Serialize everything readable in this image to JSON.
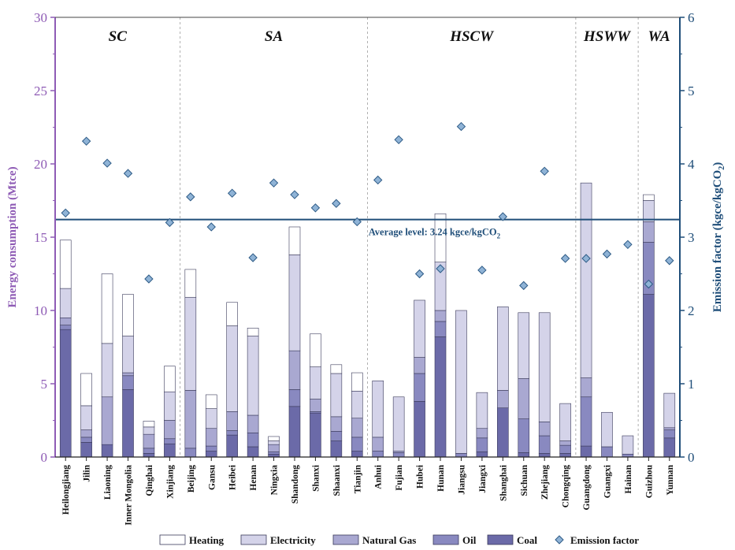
{
  "chart_data": {
    "type": "bar",
    "stacked": true,
    "categories": [
      "Heilongjiang",
      "Jilin",
      "Liaoning",
      "Inner Mongolia",
      "Qinghai",
      "Xinjiang",
      "Beijing",
      "Gansu",
      "Heibei",
      "Henan",
      "Ningxia",
      "Shandong",
      "Shanxi",
      "Shaanxi",
      "Tianjin",
      "Anhui",
      "Fujian",
      "Hubei",
      "Hunan",
      "Jiangsu",
      "Jiangxi",
      "Shanghai",
      "Sichuan",
      "Zhejiang",
      "Chongqing",
      "Guangdong",
      "Guangxi",
      "Hainan",
      "Guizhou",
      "Yunnan"
    ],
    "regions": [
      {
        "label": "SC",
        "start": 0,
        "end": 5
      },
      {
        "label": "SA",
        "start": 6,
        "end": 14
      },
      {
        "label": "HSCW",
        "start": 15,
        "end": 24
      },
      {
        "label": "HSWW",
        "start": 25,
        "end": 27
      },
      {
        "label": "WA",
        "start": 28,
        "end": 29
      }
    ],
    "series": [
      {
        "name": "Coal",
        "color": "#6b6aa8",
        "values": [
          8.7,
          1.0,
          0.85,
          4.6,
          0.25,
          0.9,
          0.0,
          0.4,
          1.5,
          0.7,
          0.2,
          3.45,
          3.0,
          1.1,
          0.4,
          0.0,
          0.0,
          3.8,
          8.2,
          0.0,
          0.35,
          3.35,
          0.3,
          0.25,
          0.25,
          0.75,
          0.0,
          0.0,
          11.1,
          1.3
        ]
      },
      {
        "name": "Oil",
        "color": "#8989c0",
        "values": [
          0.3,
          0.35,
          0.0,
          0.95,
          0.35,
          0.35,
          0.6,
          0.35,
          0.3,
          0.95,
          0.15,
          1.15,
          0.1,
          0.65,
          0.95,
          0.4,
          0.3,
          1.9,
          1.05,
          0.25,
          0.95,
          0.0,
          2.3,
          1.2,
          0.55,
          3.35,
          0.7,
          0.2,
          3.55,
          0.55
        ]
      },
      {
        "name": "Natural Gas",
        "color": "#a9a8d1",
        "values": [
          0.5,
          0.5,
          3.25,
          0.2,
          0.95,
          1.25,
          3.95,
          1.2,
          1.3,
          1.2,
          0.5,
          2.65,
          0.85,
          1.0,
          1.3,
          0.95,
          0.1,
          1.1,
          0.75,
          0.0,
          0.65,
          1.2,
          2.75,
          0.95,
          0.3,
          1.3,
          0.0,
          0.0,
          1.4,
          0.15
        ]
      },
      {
        "name": "Electricity",
        "color": "#d4d3e9",
        "values": [
          2.0,
          1.65,
          3.65,
          2.5,
          0.5,
          1.95,
          6.35,
          1.35,
          5.85,
          5.4,
          0.25,
          6.55,
          2.2,
          2.95,
          1.85,
          3.85,
          3.7,
          3.9,
          3.3,
          9.75,
          2.45,
          5.7,
          4.5,
          7.45,
          2.55,
          13.3,
          2.35,
          1.25,
          1.45,
          2.35
        ]
      },
      {
        "name": "Heating",
        "color": "#ffffff",
        "values": [
          3.3,
          2.2,
          4.75,
          2.85,
          0.4,
          1.75,
          1.9,
          0.95,
          1.6,
          0.55,
          0.3,
          1.9,
          2.25,
          0.6,
          1.25,
          0.0,
          0.0,
          0.0,
          3.3,
          0.0,
          0.0,
          0.0,
          0.0,
          0.0,
          0.0,
          0.0,
          0.0,
          0.0,
          0.4,
          0.0
        ]
      }
    ],
    "emission_factor": {
      "name": "Emission factor",
      "color": "#8fb3d6",
      "values": [
        3.33,
        4.31,
        4.01,
        3.87,
        2.43,
        3.2,
        3.55,
        3.14,
        3.6,
        2.72,
        3.74,
        3.58,
        3.4,
        3.46,
        3.21,
        3.78,
        4.33,
        2.5,
        2.57,
        4.51,
        2.55,
        3.28,
        2.34,
        3.9,
        2.71,
        2.71,
        2.77,
        2.9,
        2.36,
        2.68
      ]
    },
    "average_line": {
      "value": 3.24,
      "label": "Average level: 3.24 kgce/kgCO",
      "label_sub": "2"
    },
    "ylabel_left": "Energy consumption (Mtce)",
    "ylabel_right": "Emission factor (kgce/kgCO",
    "ylabel_right_sub": "2",
    "ylabel_right_tail": ")",
    "ylim_left": [
      0,
      30
    ],
    "ylim_right": [
      0,
      6
    ],
    "yticks_left": [
      "0",
      "5",
      "10",
      "15",
      "20",
      "25",
      "30"
    ],
    "yticks_right": [
      "0",
      "1",
      "2",
      "3",
      "4",
      "5",
      "6"
    ],
    "legend_position": "bottom",
    "left_axis_color": "#8e5bb5",
    "right_axis_color": "#1f4e79"
  }
}
